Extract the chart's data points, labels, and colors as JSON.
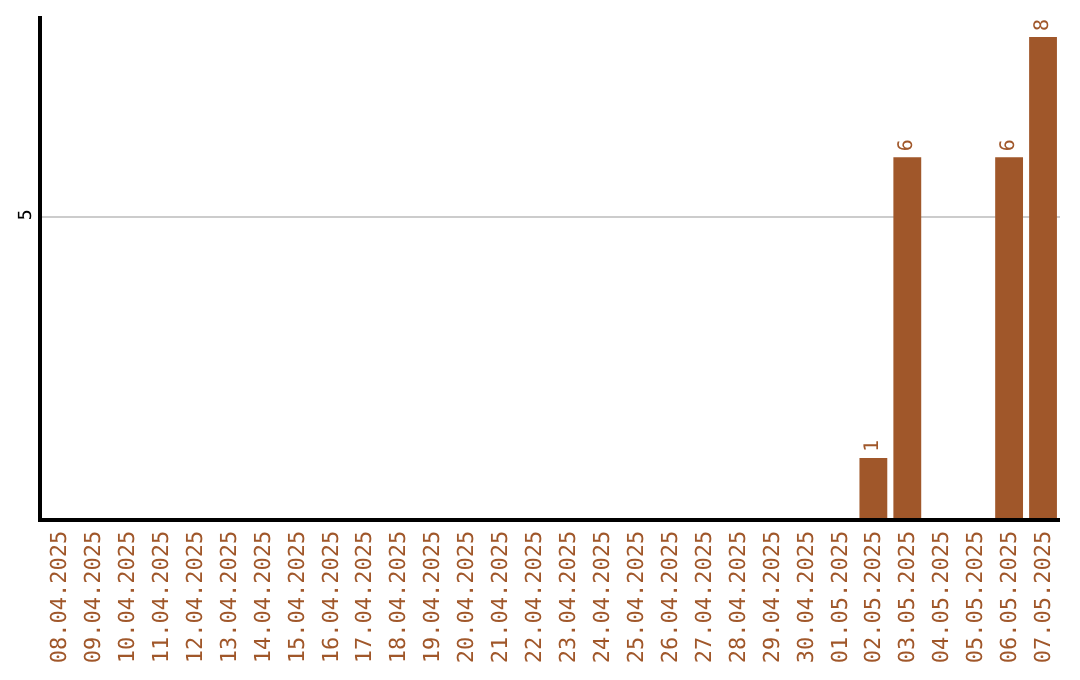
{
  "chart_data": {
    "type": "bar",
    "categories": [
      "08.04.2025",
      "09.04.2025",
      "10.04.2025",
      "11.04.2025",
      "12.04.2025",
      "13.04.2025",
      "14.04.2025",
      "15.04.2025",
      "16.04.2025",
      "17.04.2025",
      "18.04.2025",
      "19.04.2025",
      "20.04.2025",
      "21.04.2025",
      "22.04.2025",
      "23.04.2025",
      "24.04.2025",
      "25.04.2025",
      "26.04.2025",
      "27.04.2025",
      "28.04.2025",
      "29.04.2025",
      "30.04.2025",
      "01.05.2025",
      "02.05.2025",
      "03.05.2025",
      "04.05.2025",
      "05.05.2025",
      "06.05.2025",
      "07.05.2025"
    ],
    "values": [
      null,
      null,
      null,
      null,
      null,
      null,
      null,
      null,
      null,
      null,
      null,
      null,
      null,
      null,
      null,
      null,
      null,
      null,
      null,
      null,
      null,
      null,
      null,
      null,
      1,
      6,
      null,
      null,
      6,
      8
    ],
    "data_labels": true,
    "color": "#a0572a",
    "ylim": [
      0,
      8.35
    ],
    "yticks": [
      5
    ],
    "grid": "y",
    "legend": false
  }
}
